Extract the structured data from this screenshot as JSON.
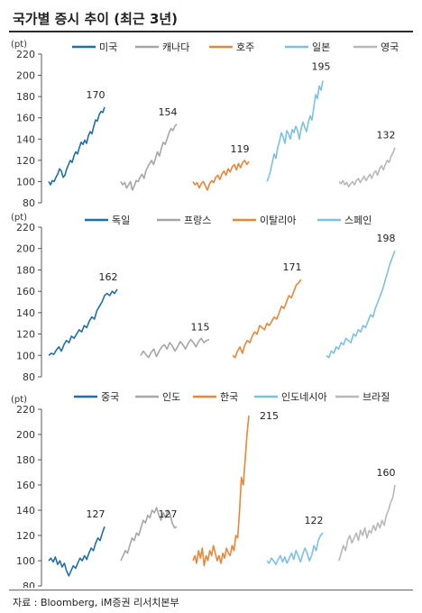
{
  "title": "국가별 증시 추이 (최근 3년)",
  "source": "자료 : Bloomberg, iM증권 리서치본부",
  "chart_data": [
    {
      "type": "line",
      "ylabel": "(pt)",
      "ylim": [
        80,
        220
      ],
      "yticks": [
        80,
        100,
        120,
        140,
        160,
        180,
        200,
        220
      ],
      "legend_position": "top",
      "series": [
        {
          "name": "미국",
          "color": "#1f6fa8",
          "start": 100,
          "end": 170,
          "end_label": "170",
          "values": [
            100,
            97,
            101,
            100,
            104,
            107,
            112,
            110,
            104,
            106,
            112,
            116,
            120,
            118,
            124,
            128,
            126,
            132,
            137,
            135,
            139,
            136,
            143,
            147,
            145,
            152,
            158,
            157,
            163,
            166,
            165,
            170
          ]
        },
        {
          "name": "캐나다",
          "color": "#a6a6a6",
          "start": 100,
          "end": 154,
          "end_label": "154",
          "values": [
            100,
            97,
            99,
            94,
            97,
            100,
            92,
            96,
            101,
            100,
            104,
            107,
            103,
            110,
            114,
            117,
            120,
            116,
            122,
            128,
            124,
            131,
            137,
            135,
            140,
            146,
            150,
            148,
            152,
            154
          ]
        },
        {
          "name": "호주",
          "color": "#e8873a",
          "start": 100,
          "end": 119,
          "end_label": "119",
          "values": [
            100,
            97,
            99,
            94,
            98,
            100,
            96,
            92,
            98,
            101,
            99,
            104,
            106,
            102,
            107,
            110,
            106,
            112,
            109,
            114,
            116,
            111,
            117,
            113,
            118,
            120,
            116,
            119
          ]
        },
        {
          "name": "일본",
          "color": "#7cc0e6",
          "start": 100,
          "end": 195,
          "end_label": "195",
          "values": [
            100,
            104,
            110,
            118,
            126,
            122,
            132,
            138,
            146,
            142,
            136,
            148,
            145,
            140,
            149,
            146,
            152,
            148,
            140,
            150,
            156,
            151,
            147,
            156,
            162,
            158,
            170,
            182,
            178,
            190,
            186,
            195
          ]
        },
        {
          "name": "영국",
          "color": "#b8b8b8",
          "start": 100,
          "end": 132,
          "end_label": "132",
          "values": [
            100,
            98,
            101,
            97,
            99,
            95,
            98,
            100,
            97,
            101,
            103,
            99,
            102,
            105,
            101,
            104,
            107,
            103,
            108,
            110,
            106,
            112,
            115,
            111,
            116,
            120,
            118,
            124,
            127,
            132
          ]
        }
      ]
    },
    {
      "type": "line",
      "ylabel": "(pt)",
      "ylim": [
        80,
        220
      ],
      "yticks": [
        80,
        100,
        120,
        140,
        160,
        180,
        200,
        220
      ],
      "legend_position": "top",
      "series": [
        {
          "name": "독일",
          "color": "#1f6fa8",
          "start": 100,
          "end": 162,
          "end_label": "162",
          "values": [
            100,
            102,
            101,
            105,
            108,
            104,
            110,
            114,
            112,
            118,
            116,
            120,
            124,
            122,
            128,
            126,
            132,
            136,
            134,
            142,
            146,
            150,
            156,
            158,
            156,
            160,
            158,
            162
          ]
        },
        {
          "name": "프랑스",
          "color": "#a6a6a6",
          "start": 100,
          "end": 115,
          "end_label": "115",
          "values": [
            100,
            104,
            101,
            98,
            103,
            106,
            99,
            104,
            108,
            110,
            106,
            112,
            109,
            104,
            108,
            113,
            110,
            106,
            111,
            115,
            112,
            108,
            113,
            116,
            112,
            114,
            115
          ]
        },
        {
          "name": "이탈리아",
          "color": "#e8873a",
          "start": 100,
          "end": 171,
          "end_label": "171",
          "values": [
            100,
            98,
            104,
            108,
            102,
            110,
            114,
            112,
            118,
            122,
            120,
            128,
            126,
            124,
            130,
            128,
            132,
            136,
            134,
            140,
            146,
            144,
            150,
            156,
            154,
            160,
            166,
            168,
            171
          ]
        },
        {
          "name": "스페인",
          "color": "#7cc0e6",
          "start": 100,
          "end": 198,
          "end_label": "198",
          "values": [
            100,
            98,
            104,
            102,
            108,
            106,
            112,
            110,
            116,
            114,
            112,
            120,
            118,
            124,
            122,
            128,
            126,
            132,
            138,
            136,
            144,
            150,
            156,
            162,
            170,
            178,
            186,
            192,
            198
          ]
        }
      ]
    },
    {
      "type": "line",
      "ylabel": "(pt)",
      "ylim": [
        80,
        220
      ],
      "yticks": [
        80,
        100,
        120,
        140,
        160,
        180,
        200,
        220
      ],
      "legend_position": "top",
      "series": [
        {
          "name": "중국",
          "color": "#1f6fa8",
          "start": 100,
          "end": 127,
          "end_label": "127",
          "values": [
            100,
            102,
            99,
            103,
            97,
            100,
            95,
            98,
            92,
            88,
            92,
            96,
            94,
            98,
            102,
            100,
            104,
            101,
            106,
            110,
            108,
            114,
            118,
            116,
            122,
            127
          ]
        },
        {
          "name": "인도",
          "color": "#a6a6a6",
          "start": 100,
          "end": 127,
          "end_label": "127",
          "values": [
            100,
            104,
            108,
            106,
            112,
            118,
            116,
            122,
            120,
            126,
            132,
            130,
            136,
            134,
            140,
            138,
            142,
            136,
            132,
            138,
            134,
            140,
            137,
            130,
            126,
            127
          ]
        },
        {
          "name": "한국",
          "color": "#e8873a",
          "start": 100,
          "end": 215,
          "end_label": "215",
          "values": [
            100,
            104,
            98,
            108,
            102,
            110,
            96,
            104,
            100,
            108,
            104,
            112,
            106,
            100,
            104,
            98,
            106,
            102,
            110,
            106,
            104,
            112,
            108,
            120,
            118,
            140,
            166,
            160,
            180,
            200,
            215
          ]
        },
        {
          "name": "인도네시아",
          "color": "#7cc0e6",
          "start": 100,
          "end": 122,
          "end_label": "122",
          "values": [
            100,
            98,
            102,
            100,
            97,
            101,
            104,
            99,
            103,
            98,
            102,
            106,
            101,
            108,
            104,
            99,
            105,
            110,
            106,
            100,
            104,
            112,
            108,
            116,
            120,
            122
          ]
        },
        {
          "name": "브라질",
          "color": "#b8b8b8",
          "start": 100,
          "end": 160,
          "end_label": "160",
          "values": [
            100,
            106,
            112,
            108,
            116,
            120,
            114,
            118,
            122,
            116,
            124,
            120,
            126,
            118,
            124,
            122,
            128,
            124,
            130,
            126,
            132,
            128,
            136,
            140,
            146,
            150,
            160
          ]
        }
      ]
    }
  ]
}
